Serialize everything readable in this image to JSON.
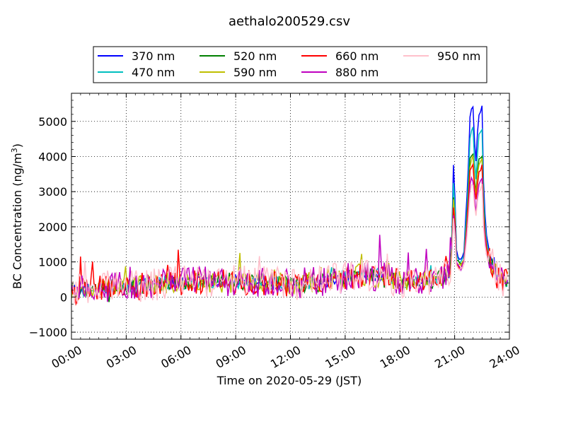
{
  "chart_data": {
    "type": "line",
    "title": "aethalo200529.csv",
    "xlabel": "Time on 2020-05-29 (JST)",
    "ylabel": "BC Concentration (ng/m",
    "ylabel_sup": "3",
    "ylabel_close": ")",
    "xlim": [
      0,
      24
    ],
    "ylim": [
      -1200,
      5800
    ],
    "xticks": [
      0,
      3,
      6,
      9,
      12,
      15,
      18,
      21,
      24
    ],
    "xtick_labels": [
      "00:00",
      "03:00",
      "06:00",
      "09:00",
      "12:00",
      "15:00",
      "18:00",
      "21:00",
      "24:00"
    ],
    "yticks": [
      -1000,
      0,
      1000,
      2000,
      3000,
      4000,
      5000
    ],
    "ytick_labels": [
      "−1000",
      "0",
      "1000",
      "2000",
      "3000",
      "4000",
      "5000"
    ],
    "grid": true,
    "legend_placement": "top",
    "series": [
      {
        "name": "370 nm",
        "color": "#0000ff",
        "scale": 1.06
      },
      {
        "name": "470 nm",
        "color": "#00bfbf",
        "scale": 0.92
      },
      {
        "name": "520 nm",
        "color": "#008000",
        "scale": 0.78
      },
      {
        "name": "590 nm",
        "color": "#bfbf00",
        "scale": 0.75
      },
      {
        "name": "660 nm",
        "color": "#ff0000",
        "scale": 0.7
      },
      {
        "name": "880 nm",
        "color": "#bf00bf",
        "scale": 0.62
      },
      {
        "name": "950 nm",
        "color": "#ffc0cb",
        "scale": 0.58
      }
    ],
    "base_profile_hours": [
      0,
      0.1,
      0.2,
      0.4,
      0.8,
      1.5,
      2.0,
      3.0,
      4.0,
      5.0,
      6.0,
      7.0,
      8.0,
      9.0,
      10.0,
      11.0,
      12.0,
      13.0,
      14.0,
      14.5,
      15.0,
      15.5,
      16.0,
      16.5,
      17.0,
      17.3,
      17.6,
      18.0,
      19.0,
      19.5,
      20.0,
      20.4,
      20.8,
      20.95,
      21.1,
      21.3,
      21.5,
      21.7,
      21.85,
      22.0,
      22.15,
      22.3,
      22.5,
      22.6,
      22.75,
      22.9,
      23.1,
      23.3,
      23.6,
      24.0
    ],
    "base_profile_values": [
      100,
      300,
      150,
      200,
      250,
      250,
      280,
      300,
      330,
      380,
      420,
      450,
      450,
      430,
      420,
      400,
      380,
      400,
      420,
      500,
      550,
      600,
      650,
      600,
      550,
      800,
      500,
      450,
      420,
      450,
      500,
      550,
      700,
      3900,
      1200,
      1000,
      1200,
      2900,
      5000,
      5200,
      3500,
      4900,
      5100,
      2700,
      1700,
      1200,
      900,
      600,
      500,
      500
    ]
  }
}
